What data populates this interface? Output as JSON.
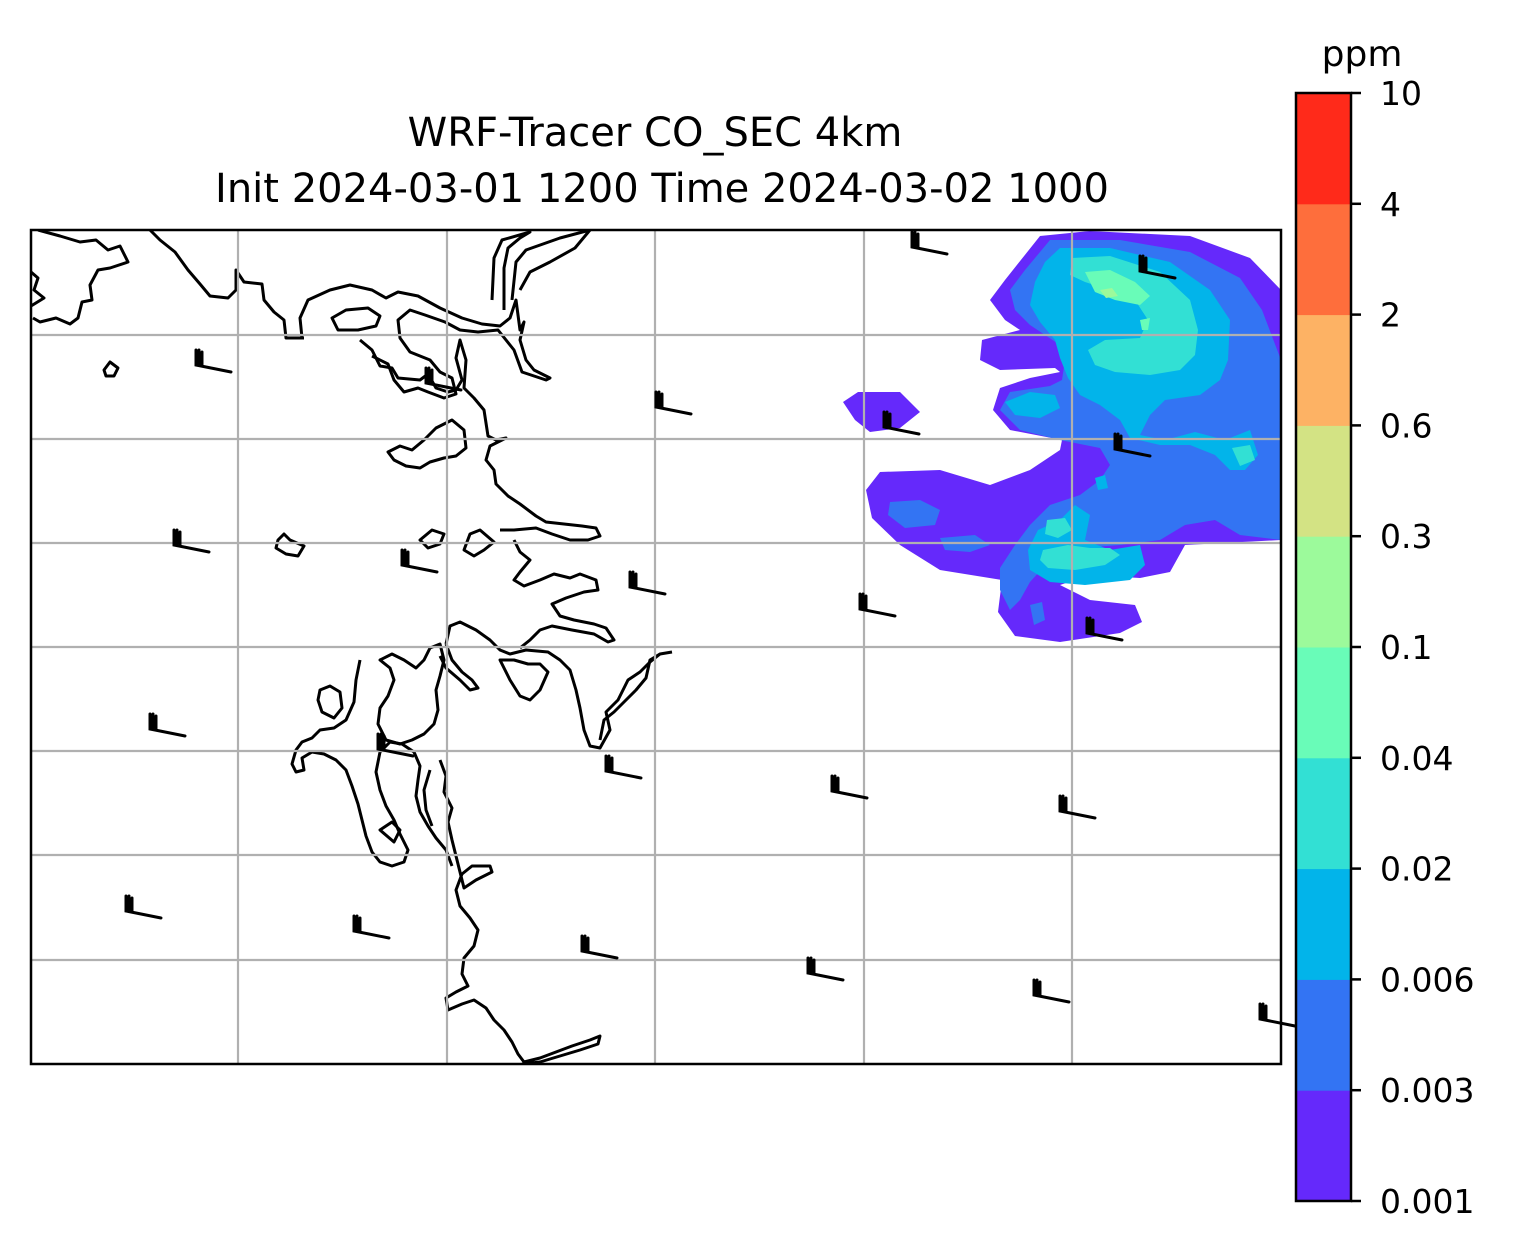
{
  "figure": {
    "title_line1": "WRF-Tracer CO_SEC 4km",
    "title_line2": "Init 2024-03-01 1200 Time 2024-03-02 1000"
  },
  "colorbar": {
    "unit": "ppm",
    "levels": [
      "0.001",
      "0.003",
      "0.006",
      "0.02",
      "0.04",
      "0.1",
      "0.3",
      "0.6",
      "2",
      "4",
      "10"
    ],
    "colors": [
      "#6529fb",
      "#3374f3",
      "#02b4ea",
      "#32e0d4",
      "#69fcb8",
      "#9cfa9b",
      "#d3e384",
      "#fdb264",
      "#fe6e3c",
      "#ff2a1a"
    ]
  },
  "map": {
    "background": "#ffffff",
    "gridline_color": "#b0b0b0",
    "coastline_color": "#000000",
    "wind_barb_color": "#000000"
  }
}
